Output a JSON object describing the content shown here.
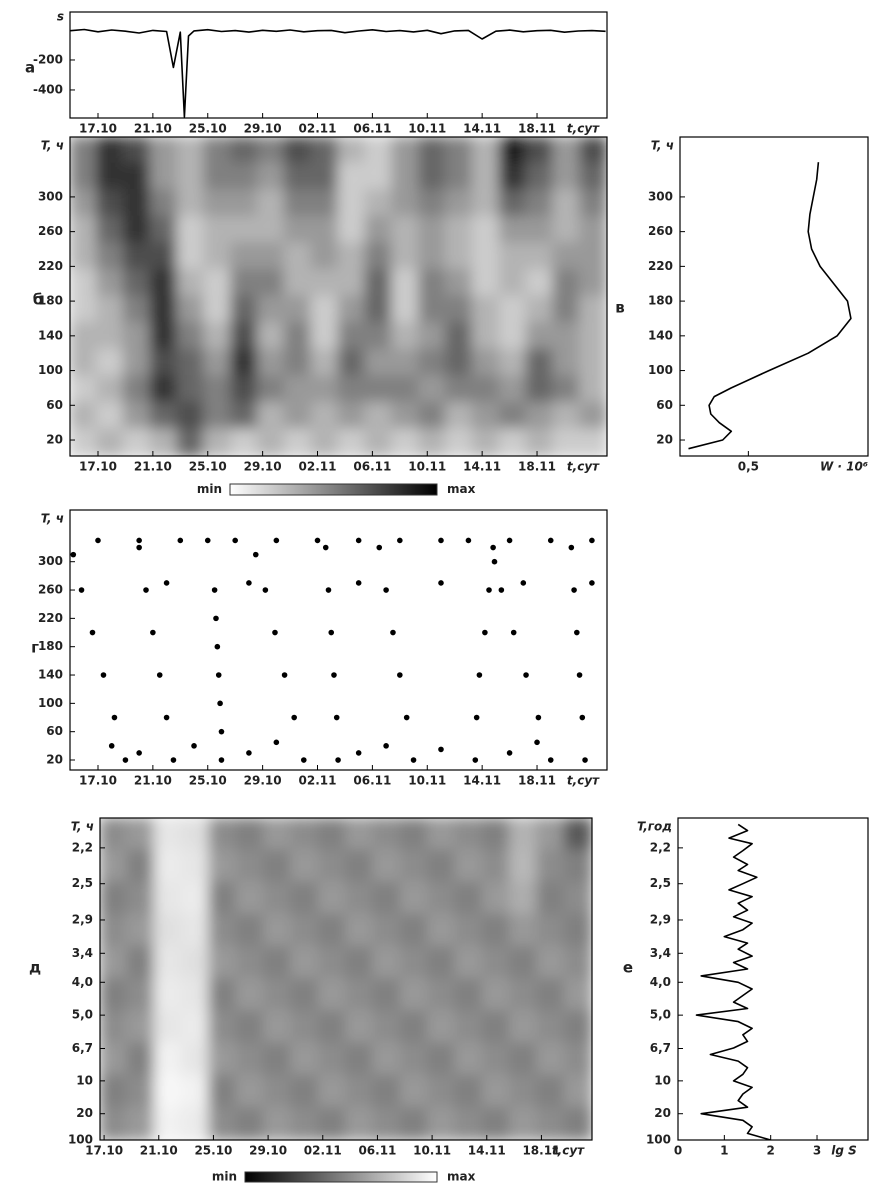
{
  "chart_data": [
    {
      "type": "line",
      "panel_label": "а",
      "y_label": "s",
      "x_label": "t,сут",
      "color": "#000000",
      "xlim": [
        -2.04,
        37.1
      ],
      "ylim": [
        -587,
        120
      ],
      "yticks": [
        -200,
        -400
      ],
      "xticks": [
        {
          "value": 0,
          "label": "17.10"
        },
        {
          "value": 4,
          "label": "21.10"
        },
        {
          "value": 8,
          "label": "25.10"
        },
        {
          "value": 12,
          "label": "29.10"
        },
        {
          "value": 16,
          "label": "02.11"
        },
        {
          "value": 20,
          "label": "06.11"
        },
        {
          "value": 24,
          "label": "10.11"
        },
        {
          "value": 28,
          "label": "14.11"
        },
        {
          "value": 32,
          "label": "18.11"
        }
      ],
      "x": [
        -2,
        -1,
        0,
        1,
        2,
        3,
        4,
        5,
        5.5,
        6,
        6.3,
        6.6,
        7,
        8,
        9,
        10,
        11,
        12,
        13,
        14,
        15,
        16,
        17,
        18,
        19,
        20,
        21,
        22,
        23,
        24,
        25,
        26,
        27,
        28,
        29,
        30,
        31,
        32,
        33,
        34,
        35,
        36,
        37
      ],
      "values": [
        -5,
        3,
        -12,
        0,
        -8,
        -20,
        -3,
        -10,
        -250,
        -15,
        -580,
        -40,
        -6,
        2,
        -10,
        -4,
        -14,
        -2,
        -9,
        0,
        -12,
        -5,
        -3,
        -18,
        -7,
        1,
        -10,
        -4,
        -13,
        -2,
        -25,
        -6,
        -3,
        -60,
        -8,
        -1,
        -12,
        -5,
        -2,
        -15,
        -7,
        -4,
        -9
      ]
    },
    {
      "type": "heatmap",
      "panel_label": "б",
      "y_label": "T, ч",
      "x_label": "t,сут",
      "colorbar_min": "min",
      "colorbar_max": "max",
      "colormap": [
        "#ffffff",
        "#000000"
      ],
      "xlim": [
        -2.04,
        37.1
      ],
      "ylim": [
        1.6,
        369
      ],
      "yticks": [
        20,
        60,
        100,
        140,
        180,
        220,
        260,
        300
      ],
      "xticks": [
        {
          "value": 0,
          "label": "17.10"
        },
        {
          "value": 4,
          "label": "21.10"
        },
        {
          "value": 8,
          "label": "25.10"
        },
        {
          "value": 12,
          "label": "29.10"
        },
        {
          "value": 16,
          "label": "02.11"
        },
        {
          "value": 20,
          "label": "06.11"
        },
        {
          "value": 24,
          "label": "10.11"
        },
        {
          "value": 28,
          "label": "14.11"
        },
        {
          "value": 32,
          "label": "18.11"
        }
      ],
      "z": [
        [
          0.5,
          0.8,
          0.7,
          0.4,
          0.3,
          0.5,
          0.6,
          0.5,
          0.7,
          0.6,
          0.3,
          0.2,
          0.4,
          0.6,
          0.5,
          0.3,
          0.9,
          0.7,
          0.4,
          0.7
        ],
        [
          0.5,
          0.8,
          0.8,
          0.4,
          0.3,
          0.5,
          0.5,
          0.4,
          0.6,
          0.6,
          0.2,
          0.2,
          0.4,
          0.6,
          0.5,
          0.3,
          0.8,
          0.6,
          0.4,
          0.6
        ],
        [
          0.4,
          0.7,
          0.8,
          0.5,
          0.3,
          0.4,
          0.4,
          0.3,
          0.5,
          0.5,
          0.2,
          0.3,
          0.4,
          0.5,
          0.4,
          0.3,
          0.6,
          0.5,
          0.3,
          0.5
        ],
        [
          0.3,
          0.6,
          0.8,
          0.6,
          0.2,
          0.3,
          0.3,
          0.3,
          0.4,
          0.4,
          0.2,
          0.4,
          0.3,
          0.4,
          0.3,
          0.2,
          0.4,
          0.4,
          0.3,
          0.4
        ],
        [
          0.3,
          0.5,
          0.7,
          0.7,
          0.2,
          0.3,
          0.4,
          0.4,
          0.3,
          0.4,
          0.3,
          0.5,
          0.3,
          0.4,
          0.3,
          0.2,
          0.3,
          0.3,
          0.4,
          0.4
        ],
        [
          0.2,
          0.4,
          0.6,
          0.8,
          0.3,
          0.2,
          0.5,
          0.5,
          0.3,
          0.3,
          0.3,
          0.6,
          0.2,
          0.5,
          0.4,
          0.2,
          0.3,
          0.2,
          0.5,
          0.4
        ],
        [
          0.2,
          0.3,
          0.5,
          0.8,
          0.4,
          0.2,
          0.6,
          0.4,
          0.4,
          0.2,
          0.4,
          0.6,
          0.2,
          0.5,
          0.5,
          0.3,
          0.2,
          0.3,
          0.5,
          0.3
        ],
        [
          0.3,
          0.3,
          0.4,
          0.8,
          0.5,
          0.3,
          0.7,
          0.3,
          0.5,
          0.2,
          0.5,
          0.5,
          0.3,
          0.4,
          0.6,
          0.3,
          0.2,
          0.4,
          0.4,
          0.3
        ],
        [
          0.3,
          0.2,
          0.4,
          0.7,
          0.6,
          0.4,
          0.8,
          0.4,
          0.5,
          0.3,
          0.6,
          0.4,
          0.4,
          0.5,
          0.6,
          0.4,
          0.3,
          0.6,
          0.4,
          0.3
        ],
        [
          0.2,
          0.3,
          0.5,
          0.8,
          0.6,
          0.5,
          0.7,
          0.5,
          0.4,
          0.4,
          0.5,
          0.5,
          0.5,
          0.4,
          0.5,
          0.5,
          0.4,
          0.6,
          0.5,
          0.3
        ],
        [
          0.3,
          0.2,
          0.4,
          0.6,
          0.7,
          0.5,
          0.6,
          0.3,
          0.4,
          0.3,
          0.4,
          0.3,
          0.4,
          0.5,
          0.3,
          0.4,
          0.5,
          0.4,
          0.3,
          0.4
        ],
        [
          0.2,
          0.3,
          0.2,
          0.3,
          0.6,
          0.3,
          0.2,
          0.3,
          0.2,
          0.3,
          0.2,
          0.3,
          0.2,
          0.3,
          0.2,
          0.3,
          0.2,
          0.3,
          0.2,
          0.2
        ]
      ]
    },
    {
      "type": "line",
      "panel_label": "в",
      "y_label": "T, ч",
      "x_label": "W · 10⁶",
      "color": "#000000",
      "xlim": [
        0.1,
        1.2
      ],
      "ylim": [
        1.6,
        369
      ],
      "yticks": [
        20,
        60,
        100,
        140,
        180,
        220,
        260,
        300
      ],
      "xticks": [
        {
          "value": 0.5,
          "label": "0,5"
        }
      ],
      "y": [
        10,
        20,
        30,
        40,
        50,
        60,
        70,
        80,
        100,
        120,
        140,
        160,
        180,
        200,
        220,
        240,
        260,
        280,
        300,
        320,
        340
      ],
      "values": [
        0.15,
        0.35,
        0.4,
        0.33,
        0.28,
        0.27,
        0.3,
        0.4,
        0.62,
        0.85,
        1.02,
        1.1,
        1.08,
        1.0,
        0.92,
        0.87,
        0.85,
        0.86,
        0.88,
        0.9,
        0.91
      ]
    },
    {
      "type": "scatter",
      "panel_label": "г",
      "y_label": "T, ч",
      "x_label": "t,сут",
      "color": "#000000",
      "xlim": [
        -2.04,
        37.1
      ],
      "ylim": [
        5.9,
        373
      ],
      "yticks": [
        20,
        60,
        100,
        140,
        180,
        220,
        260,
        300
      ],
      "xticks": [
        {
          "value": 0,
          "label": "17.10"
        },
        {
          "value": 4,
          "label": "21.10"
        },
        {
          "value": 8,
          "label": "25.10"
        },
        {
          "value": 12,
          "label": "29.10"
        },
        {
          "value": 16,
          "label": "02.11"
        },
        {
          "value": 20,
          "label": "06.11"
        },
        {
          "value": 24,
          "label": "10.11"
        },
        {
          "value": 28,
          "label": "14.11"
        },
        {
          "value": 32,
          "label": "18.11"
        }
      ],
      "x": [
        2,
        1.2,
        0.4,
        -0.4,
        -1.2,
        -1.8,
        5.5,
        5,
        4.5,
        4,
        3.5,
        3,
        9,
        9,
        8.9,
        8.8,
        8.7,
        8.6,
        8.5,
        15,
        14.3,
        13.6,
        12.9,
        12.2,
        11.5,
        17.5,
        17.4,
        17.2,
        17,
        16.8,
        16.6,
        23,
        22.5,
        22,
        21.5,
        21,
        20.5,
        27.5,
        27.6,
        27.8,
        28.2,
        28.5,
        28.8,
        33,
        32.1,
        31.2,
        30.3,
        29.4,
        28.9,
        35.5,
        35.3,
        35.1,
        34.9,
        34.7,
        34.5,
        0,
        3,
        6,
        8,
        10,
        13,
        16,
        19,
        22,
        25,
        27,
        30,
        33,
        36,
        5,
        11,
        19,
        25,
        31,
        36,
        1,
        3,
        7,
        11,
        13,
        19,
        21,
        25,
        30,
        32
      ],
      "y": [
        20,
        80,
        140,
        200,
        260,
        310,
        20,
        80,
        140,
        200,
        260,
        320,
        20,
        60,
        100,
        140,
        180,
        220,
        260,
        20,
        80,
        140,
        200,
        260,
        310,
        20,
        80,
        140,
        200,
        260,
        320,
        20,
        80,
        140,
        200,
        260,
        320,
        20,
        80,
        140,
        200,
        260,
        320,
        20,
        80,
        140,
        200,
        260,
        300,
        20,
        80,
        140,
        200,
        260,
        320,
        330,
        330,
        330,
        330,
        330,
        330,
        330,
        330,
        330,
        330,
        330,
        330,
        330,
        330,
        270,
        270,
        270,
        270,
        270,
        270,
        40,
        30,
        40,
        30,
        45,
        30,
        40,
        35,
        30,
        45
      ]
    },
    {
      "type": "heatmap",
      "panel_label": "д",
      "y_label": "T, ч",
      "x_label": "t,сут",
      "colorbar_min": "min",
      "colorbar_max": "max",
      "colormap": [
        "#000000",
        "#ffffff"
      ],
      "y_scale": "reciprocal",
      "xlim": [
        -0.3,
        35.7
      ],
      "ylim": [
        100,
        2
      ],
      "yticks": [
        {
          "value": 2.2,
          "label": "2,2"
        },
        {
          "value": 2.5,
          "label": "2,5"
        },
        {
          "value": 2.9,
          "label": "2,9"
        },
        {
          "value": 3.4,
          "label": "3,4"
        },
        {
          "value": 4.0,
          "label": "4,0"
        },
        {
          "value": 5.0,
          "label": "5,0"
        },
        {
          "value": 6.7,
          "label": "6,7"
        },
        10,
        20,
        100
      ],
      "xticks": [
        {
          "value": 0,
          "label": "17.10"
        },
        {
          "value": 4,
          "label": "21.10"
        },
        {
          "value": 8,
          "label": "25.10"
        },
        {
          "value": 12,
          "label": "29.10"
        },
        {
          "value": 16,
          "label": "02.11"
        },
        {
          "value": 20,
          "label": "06.11"
        },
        {
          "value": 24,
          "label": "10.11"
        },
        {
          "value": 28,
          "label": "14.11"
        },
        {
          "value": 32,
          "label": "18.11"
        }
      ],
      "z": [
        [
          0.55,
          0.6,
          0.9,
          0.88,
          0.55,
          0.5,
          0.6,
          0.55,
          0.5,
          0.6,
          0.55,
          0.5,
          0.6,
          0.55,
          0.5,
          0.7,
          0.6,
          0.35
        ],
        [
          0.6,
          0.5,
          0.92,
          0.9,
          0.6,
          0.55,
          0.5,
          0.6,
          0.55,
          0.5,
          0.6,
          0.55,
          0.5,
          0.6,
          0.55,
          0.72,
          0.55,
          0.5
        ],
        [
          0.5,
          0.55,
          0.9,
          0.92,
          0.5,
          0.6,
          0.55,
          0.5,
          0.6,
          0.55,
          0.5,
          0.6,
          0.55,
          0.5,
          0.6,
          0.68,
          0.5,
          0.55
        ],
        [
          0.55,
          0.6,
          0.88,
          0.9,
          0.55,
          0.5,
          0.6,
          0.55,
          0.5,
          0.6,
          0.55,
          0.5,
          0.6,
          0.55,
          0.5,
          0.6,
          0.55,
          0.5
        ],
        [
          0.6,
          0.5,
          0.9,
          0.88,
          0.6,
          0.55,
          0.5,
          0.6,
          0.55,
          0.5,
          0.6,
          0.55,
          0.5,
          0.6,
          0.55,
          0.5,
          0.6,
          0.55
        ],
        [
          0.5,
          0.55,
          0.92,
          0.9,
          0.5,
          0.6,
          0.55,
          0.5,
          0.6,
          0.55,
          0.5,
          0.6,
          0.55,
          0.5,
          0.6,
          0.55,
          0.5,
          0.6
        ],
        [
          0.55,
          0.6,
          0.9,
          0.92,
          0.55,
          0.5,
          0.6,
          0.55,
          0.5,
          0.6,
          0.55,
          0.5,
          0.6,
          0.55,
          0.5,
          0.6,
          0.55,
          0.5
        ],
        [
          0.6,
          0.5,
          0.95,
          0.9,
          0.6,
          0.55,
          0.5,
          0.6,
          0.55,
          0.5,
          0.6,
          0.55,
          0.5,
          0.6,
          0.55,
          0.5,
          0.6,
          0.55
        ],
        [
          0.5,
          0.55,
          0.97,
          0.95,
          0.5,
          0.6,
          0.55,
          0.5,
          0.6,
          0.55,
          0.5,
          0.6,
          0.55,
          0.5,
          0.6,
          0.55,
          0.5,
          0.6
        ],
        [
          0.55,
          0.6,
          0.95,
          0.92,
          0.55,
          0.5,
          0.6,
          0.55,
          0.5,
          0.6,
          0.55,
          0.5,
          0.6,
          0.55,
          0.5,
          0.6,
          0.55,
          0.5
        ]
      ]
    },
    {
      "type": "line",
      "panel_label": "е",
      "y_label": "T,год",
      "x_label": "lg S",
      "color": "#000000",
      "y_scale": "reciprocal",
      "xlim": [
        0,
        4.1
      ],
      "ylim": [
        100,
        2
      ],
      "xticks": [
        0,
        1,
        2,
        3
      ],
      "yticks": [
        {
          "value": 2.2,
          "label": "2,2"
        },
        {
          "value": 2.5,
          "label": "2,5"
        },
        {
          "value": 2.9,
          "label": "2,9"
        },
        {
          "value": 3.4,
          "label": "3,4"
        },
        {
          "value": 4.0,
          "label": "4,0"
        },
        {
          "value": 5.0,
          "label": "5,0"
        },
        {
          "value": 6.7,
          "label": "6,7"
        },
        10,
        20,
        100
      ],
      "y": [
        2.04,
        2.08,
        2.13,
        2.17,
        2.22,
        2.27,
        2.33,
        2.38,
        2.44,
        2.5,
        2.56,
        2.63,
        2.7,
        2.78,
        2.86,
        2.94,
        3.03,
        3.13,
        3.23,
        3.33,
        3.45,
        3.57,
        3.7,
        3.85,
        4,
        4.17,
        4.35,
        4.55,
        4.76,
        5,
        5.26,
        5.56,
        5.88,
        6.25,
        6.67,
        7.14,
        7.69,
        8.33,
        9.09,
        10,
        11.1,
        12.5,
        14.3,
        16.7,
        20,
        25,
        33.3,
        50,
        100
      ],
      "values": [
        1.3,
        1.5,
        1.1,
        1.6,
        1.4,
        1.2,
        1.5,
        1.3,
        1.7,
        1.4,
        1.1,
        1.6,
        1.3,
        1.5,
        1.2,
        1.6,
        1.4,
        1.0,
        1.5,
        1.3,
        1.6,
        1.2,
        1.5,
        0.5,
        1.3,
        1.6,
        1.4,
        1.2,
        1.5,
        0.4,
        1.3,
        1.6,
        1.4,
        1.5,
        1.2,
        0.7,
        1.3,
        1.5,
        1.4,
        1.2,
        1.6,
        1.4,
        1.3,
        1.5,
        0.5,
        1.4,
        1.6,
        1.5,
        2.0
      ]
    }
  ]
}
